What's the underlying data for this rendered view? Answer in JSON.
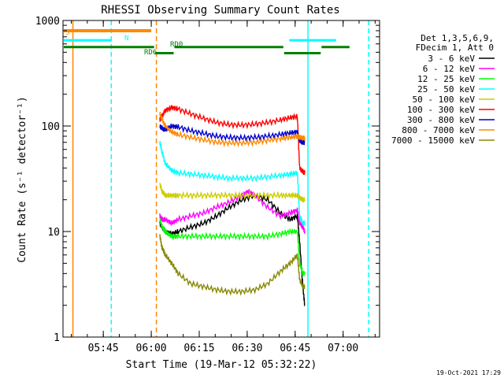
{
  "chart_data": {
    "type": "line",
    "title": "RHESSI Observing Summary Count Rates",
    "xlabel": "Start Time (19-Mar-12 05:32:22)",
    "ylabel": "Count Rate (s⁻¹ detector⁻¹)",
    "yscale": "log",
    "ylim": [
      1,
      1000
    ],
    "xlim_minutes": [
      0,
      99
    ],
    "x_ticks": [
      {
        "label": "05:45",
        "minutes": 12.6
      },
      {
        "label": "06:00",
        "minutes": 27.6
      },
      {
        "label": "06:15",
        "minutes": 42.6
      },
      {
        "label": "06:30",
        "minutes": 57.6
      },
      {
        "label": "06:45",
        "minutes": 72.6
      },
      {
        "label": "07:00",
        "minutes": 87.6
      }
    ],
    "y_ticks": [
      {
        "label": "1",
        "value": 1
      },
      {
        "label": "10",
        "value": 10
      },
      {
        "label": "100",
        "value": 100
      },
      {
        "label": "1000",
        "value": 1000
      }
    ],
    "legend_header": [
      "Det 1,3,5,6,9,",
      "FDecim 1, Att 0"
    ],
    "timestamp": "19-Oct-2021 17:29",
    "series": [
      {
        "name": "3 - 6 keV",
        "color": "#000000",
        "x": [
          30.3,
          31,
          32,
          34,
          36,
          40,
          44,
          48,
          52,
          56,
          60,
          64,
          68,
          71,
          73.3,
          74,
          75,
          75.6
        ],
        "y": [
          12,
          11,
          10,
          9.5,
          10,
          11,
          12,
          14,
          17,
          20,
          22,
          20,
          15,
          13,
          14,
          8,
          3,
          2
        ]
      },
      {
        "name": "6 - 12 keV",
        "color": "#ff00ff",
        "x": [
          30.3,
          31,
          32,
          34,
          36,
          40,
          44,
          48,
          52,
          56,
          58,
          60,
          64,
          68,
          71,
          73.3,
          74,
          75,
          75.6
        ],
        "y": [
          14,
          13,
          13,
          12,
          13,
          14,
          15,
          17,
          19,
          22,
          24,
          22,
          17,
          14,
          15,
          16,
          12,
          11,
          10
        ]
      },
      {
        "name": "12 - 25 keV",
        "color": "#00ff00",
        "x": [
          30.3,
          31,
          32,
          34,
          36,
          40,
          44,
          48,
          52,
          56,
          60,
          64,
          68,
          71,
          73.3,
          74,
          75,
          75.6
        ],
        "y": [
          13,
          11,
          10,
          9,
          9,
          9,
          9,
          9,
          9,
          9,
          9,
          9,
          9.5,
          10,
          10,
          5,
          4,
          4
        ]
      },
      {
        "name": "25 - 50 keV",
        "color": "#00ffff",
        "x": [
          30.3,
          31,
          32,
          34,
          36,
          40,
          44,
          48,
          52,
          56,
          60,
          64,
          68,
          71,
          73.3,
          74,
          75,
          75.6
        ],
        "y": [
          70,
          56,
          44,
          38,
          36,
          35,
          34,
          33,
          32,
          32,
          32,
          33,
          34,
          35,
          36,
          14,
          12,
          12
        ]
      },
      {
        "name": "50 - 100 keV",
        "color": "#cccc00",
        "x": [
          30.3,
          31,
          32,
          34,
          36,
          40,
          44,
          48,
          52,
          56,
          60,
          64,
          68,
          71,
          73.3,
          74,
          75,
          75.6
        ],
        "y": [
          28,
          24,
          22,
          22,
          22,
          22,
          22,
          22,
          22,
          22,
          22,
          22,
          22,
          22,
          22,
          21,
          20,
          20
        ]
      },
      {
        "name": "100 - 300 keV",
        "color": "#ff0000",
        "x": [
          30.3,
          31,
          32,
          34,
          36,
          40,
          44,
          48,
          52,
          56,
          60,
          64,
          68,
          71,
          73.3,
          74,
          75,
          75.6
        ],
        "y": [
          115,
          125,
          140,
          150,
          145,
          130,
          118,
          108,
          103,
          102,
          104,
          108,
          114,
          120,
          123,
          40,
          37,
          36
        ]
      },
      {
        "name": "300 - 800 keV",
        "color": "#0000cc",
        "x": [
          30.3,
          31,
          32,
          34,
          36,
          40,
          44,
          48,
          52,
          56,
          60,
          64,
          68,
          71,
          73.3,
          74,
          75,
          75.6
        ],
        "y": [
          100,
          95,
          92,
          100,
          98,
          90,
          85,
          80,
          78,
          77,
          78,
          80,
          83,
          86,
          88,
          72,
          70,
          70
        ]
      },
      {
        "name": "800 - 7000 keV",
        "color": "#ff8800",
        "x": [
          30.3,
          31,
          32,
          34,
          36,
          40,
          44,
          48,
          52,
          56,
          60,
          64,
          68,
          71,
          73.3,
          74,
          75,
          75.6
        ],
        "y": [
          130,
          115,
          100,
          88,
          83,
          78,
          74,
          70,
          69,
          69,
          70,
          73,
          76,
          78,
          80,
          78,
          77,
          77
        ]
      },
      {
        "name": "7000 - 15000 keV",
        "color": "#888800",
        "x": [
          30.3,
          31,
          32,
          34,
          36,
          40,
          44,
          48,
          52,
          56,
          60,
          64,
          68,
          71,
          73.3,
          74,
          75,
          75.6
        ],
        "y": [
          9,
          7,
          6,
          5,
          4,
          3.2,
          3,
          2.8,
          2.7,
          2.7,
          2.8,
          3.2,
          4.2,
          5,
          6,
          3.5,
          3,
          3
        ]
      }
    ],
    "annotations": [
      {
        "label": "S",
        "color": "#ff8800",
        "x0": 0,
        "x1": 27.6,
        "y": 800,
        "marker_x": 3
      },
      {
        "label": "N",
        "color": "#00ffff",
        "x0": 0,
        "x1": 15.2,
        "y": 650,
        "marker_x": 15.2
      },
      {
        "label": "RD6",
        "color": "#008000",
        "x0": 0,
        "x1": 28.5,
        "y": 560
      },
      {
        "label": "RD6",
        "color": "#008000",
        "x0": 28.5,
        "x1": 34.6,
        "y": 490
      },
      {
        "label": "RD6",
        "color": "#008000",
        "x0": 34.6,
        "x1": 68.9,
        "y": 560
      },
      {
        "label": "RD6",
        "color": "#008000",
        "x0": 68.9,
        "x1": 80.6,
        "y": 490
      },
      {
        "label": "RD6",
        "color": "#008000",
        "x0": 80.6,
        "x1": 89.6,
        "y": 560
      },
      {
        "label": "RD0",
        "color": "#008000",
        "x0": 0,
        "x1": 0,
        "y": 560
      },
      {
        "label": "N",
        "color": "#00ffff",
        "x0": 70.5,
        "x1": 85.4,
        "y": 650
      }
    ],
    "vertical_lines": [
      {
        "minutes": 3.1,
        "color": "#ff8800",
        "style": "solid"
      },
      {
        "minutes": 15.1,
        "color": "#00ffff",
        "style": "dashed"
      },
      {
        "minutes": 29.2,
        "color": "#ff8800",
        "style": "dashed"
      },
      {
        "minutes": 76.6,
        "color": "#00ffff",
        "style": "solid"
      },
      {
        "minutes": 95.6,
        "color": "#00ffff",
        "style": "dashed"
      }
    ]
  }
}
